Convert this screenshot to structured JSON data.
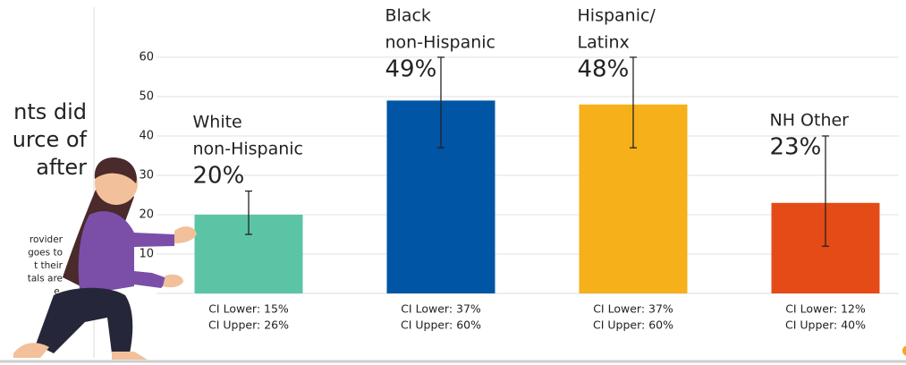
{
  "side_text": {
    "heading": [
      "nts did",
      "urce of",
      "after"
    ],
    "note": [
      "rovider",
      "goes to",
      "t their",
      "tals are",
      "e."
    ]
  },
  "chart_data": {
    "type": "bar",
    "categories": [
      [
        "White",
        "non-Hispanic"
      ],
      [
        "Black",
        "non-Hispanic"
      ],
      [
        "Hispanic/",
        "Latinx"
      ],
      [
        "NH Other"
      ]
    ],
    "values": [
      20,
      49,
      48,
      23
    ],
    "value_labels": [
      "20%",
      "49%",
      "48%",
      "23%"
    ],
    "colors": [
      "#5bc4a5",
      "#0055a5",
      "#f5b01a",
      "#e54b16"
    ],
    "ci_lower": [
      15,
      37,
      37,
      12
    ],
    "ci_upper": [
      26,
      60,
      60,
      40
    ],
    "ci_lower_labels": [
      "CI Lower: 15%",
      "CI Lower: 37%",
      "CI Lower: 37%",
      "CI Lower: 12%"
    ],
    "ci_upper_labels": [
      "CI Upper: 26%",
      "CI Upper: 60%",
      "CI Upper: 60%",
      "CI Upper: 40%"
    ],
    "ylim": [
      0,
      60
    ],
    "yticks": [
      10,
      20,
      30,
      40,
      50,
      60
    ],
    "grid": true
  }
}
